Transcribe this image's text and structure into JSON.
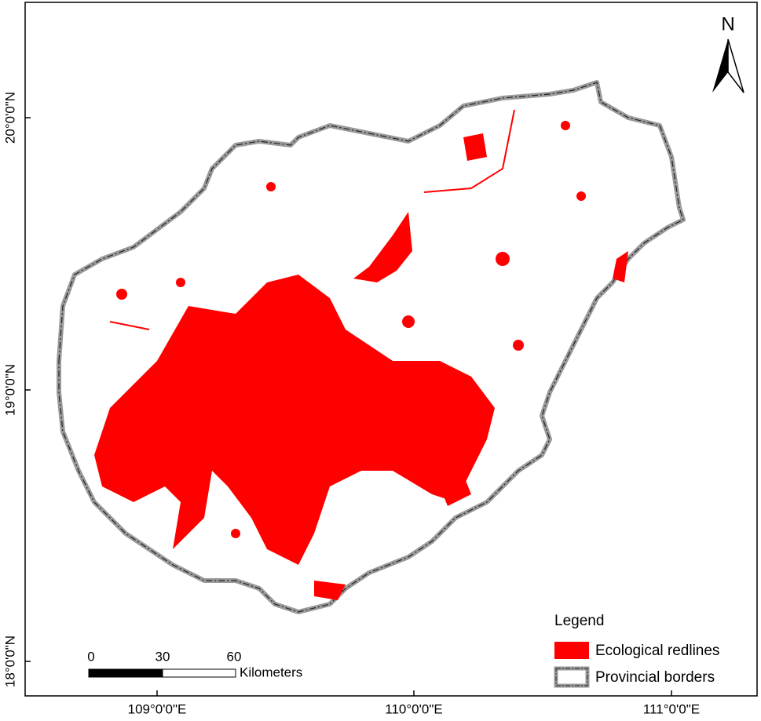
{
  "map": {
    "north_label": "N",
    "longitude_labels": [
      "109°0'0\"E",
      "110°0'0\"E",
      "111°0'0\"E"
    ],
    "latitude_labels": [
      "20°0'0\"N",
      "19°0'0\"N",
      "18°0'0\"N"
    ],
    "scale_bar": {
      "labels": [
        0,
        30,
        60
      ],
      "unit": "Kilometers"
    },
    "legend": {
      "title": "Legend",
      "items": [
        "Ecological redlines",
        "Provincial borders"
      ]
    }
  }
}
